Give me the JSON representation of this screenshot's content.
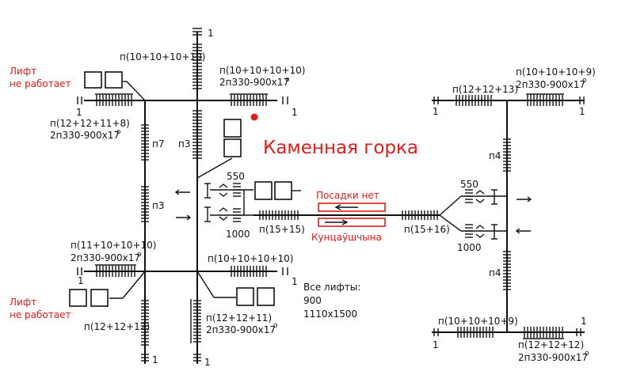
{
  "title": "Каменная горка",
  "notes": {
    "lift_top": [
      "Лифт",
      "не работает"
    ],
    "lift_bottom": [
      "Лифт",
      "не работает"
    ],
    "all_lifts": [
      "Все лифты:",
      "900",
      "1110х1500"
    ],
    "posadki": "Посадки нет",
    "kuntsaushchyna": "Кунцаўшчына"
  },
  "labels": {
    "l_top_mid": "п(10+10+10+10)",
    "l_top_right_1": "п(10+10+10+10)",
    "l_top_right_2": "2п330-900х17",
    "l_left_1": "п(12+12+11+8)",
    "l_left_2": "2п330-900х17",
    "l_p7": "п7",
    "l_p3a": "п3",
    "l_p3b": "п3",
    "l_550a": "550",
    "l_1000a": "1000",
    "l_p1515": "п(15+15)",
    "l_p1516": "п(15+16)",
    "l_mid_left_1": "п(11+10+10+10)",
    "l_mid_left_2": "2п330-900х17",
    "l_mid_right": "п(10+10+10+10)",
    "l_bot_left": "п(12+12+12)",
    "l_bot_mid_1": "п(12+12+11)",
    "l_bot_mid_2": "2п330-900х17",
    "r_top_left": "п(12+12+13)",
    "r_top_right_1": "п(10+10+10+9)",
    "r_top_right_2": "2п330-900х17",
    "r_p4a": "п4",
    "r_p4b": "п4",
    "r_550": "550",
    "r_1000": "1000",
    "r_bot_left": "п(10+10+10+9)",
    "r_bot_right_1": "п(12+12+12)",
    "r_bot_right_2": "2п330-900х17",
    "one": "1",
    "deg": "о"
  }
}
